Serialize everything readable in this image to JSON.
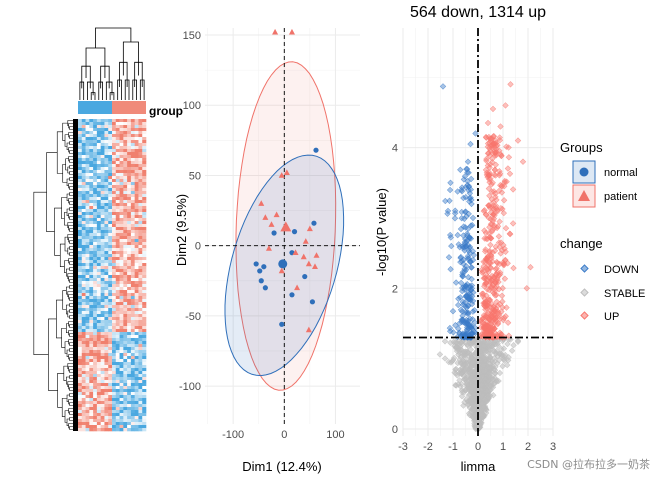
{
  "colors": {
    "normal": "#2f6fba",
    "patient": "#f0736a",
    "down": "#3a7bc8",
    "stable": "#bdbdbd",
    "up": "#f8766d",
    "heat_low": "#4aa8e0",
    "heat_high": "#f08a7a",
    "panel_bg": "#ffffff",
    "grid": "#ebebeb"
  },
  "heatmap": {
    "annotation_label": "group",
    "groups": [
      "normal",
      "patient"
    ]
  },
  "chart_data": [
    {
      "type": "heatmap",
      "annotation": "group",
      "columns_groups": [
        {
          "name": "normal",
          "count": 9
        },
        {
          "name": "patient",
          "count": 9
        }
      ]
    },
    {
      "type": "scatter",
      "title": "",
      "xlabel": "Dim1 (12.4%)",
      "ylabel": "Dim2 (9.5%)",
      "xlim": [
        -155,
        148
      ],
      "ylim": [
        -127,
        155
      ],
      "xticks": [
        -100,
        0,
        100
      ],
      "yticks": [
        -100,
        -50,
        0,
        50,
        100,
        150
      ],
      "xtick_labels": [
        "-100",
        "0",
        "100"
      ],
      "ytick_labels": [
        "-100",
        "-50",
        "0",
        "50",
        "100",
        "150"
      ],
      "series": [
        {
          "name": "normal",
          "marker": "circle",
          "points": [
            [
              -48,
              -18
            ],
            [
              -40,
              -15
            ],
            [
              -45,
              -25
            ],
            [
              -55,
              -13
            ],
            [
              -37,
              -30
            ],
            [
              -20,
              9
            ],
            [
              20,
              10
            ],
            [
              15,
              -5
            ],
            [
              -2,
              -13
            ],
            [
              40,
              -22
            ],
            [
              62,
              68
            ],
            [
              58,
              16
            ],
            [
              55,
              -40
            ],
            [
              15,
              -35
            ],
            [
              -5,
              -56
            ]
          ],
          "centroid": [
            -3,
            -13
          ]
        },
        {
          "name": "patient",
          "marker": "triangle",
          "points": [
            [
              -18,
              152
            ],
            [
              15,
              152
            ],
            [
              -45,
              30
            ],
            [
              -37,
              20
            ],
            [
              -25,
              15
            ],
            [
              -15,
              22
            ],
            [
              -5,
              50
            ],
            [
              5,
              52
            ],
            [
              3,
              13
            ],
            [
              -30,
              -2
            ],
            [
              50,
              12
            ],
            [
              42,
              3
            ],
            [
              38,
              -8
            ],
            [
              48,
              -13
            ],
            [
              22,
              -5
            ],
            [
              60,
              -15
            ],
            [
              63,
              -7
            ],
            [
              25,
              -30
            ],
            [
              48,
              -60
            ],
            [
              -5,
              -18
            ]
          ],
          "centroid": [
            3,
            13
          ]
        }
      ],
      "ellipses": [
        {
          "group": "normal",
          "center": [
            0,
            -14
          ],
          "rx": 140,
          "ry": 88,
          "rotation_deg": -55
        },
        {
          "group": "patient",
          "center": [
            3,
            14
          ],
          "rx": 187,
          "ry": 90,
          "rotation_deg": -86
        }
      ],
      "legend": {
        "title": "Groups",
        "entries": [
          "normal",
          "patient"
        ],
        "position": "right"
      }
    },
    {
      "type": "scatter",
      "title": "564 down, 1314 up",
      "xlabel": "limma",
      "ylabel": "-log10(P value)",
      "xlim": [
        -3,
        3
      ],
      "ylim": [
        -0.1,
        5.7
      ],
      "xticks": [
        -3,
        -2,
        -1,
        0,
        1,
        2,
        3
      ],
      "yticks": [
        0,
        2,
        4
      ],
      "xtick_labels": [
        "-3",
        "-2",
        "-1",
        "0",
        "1",
        "2",
        "3"
      ],
      "ytick_labels": [
        "0",
        "2",
        "4"
      ],
      "threshold_y": 1.3,
      "threshold_x": 0,
      "counts": {
        "down": 564,
        "up": 1314
      },
      "categories": [
        "DOWN",
        "STABLE",
        "UP"
      ],
      "legend": {
        "title": "change",
        "entries": [
          "DOWN",
          "STABLE",
          "UP"
        ],
        "position": "right"
      }
    }
  ],
  "watermark": "CSDN @拉布拉多一奶茶"
}
